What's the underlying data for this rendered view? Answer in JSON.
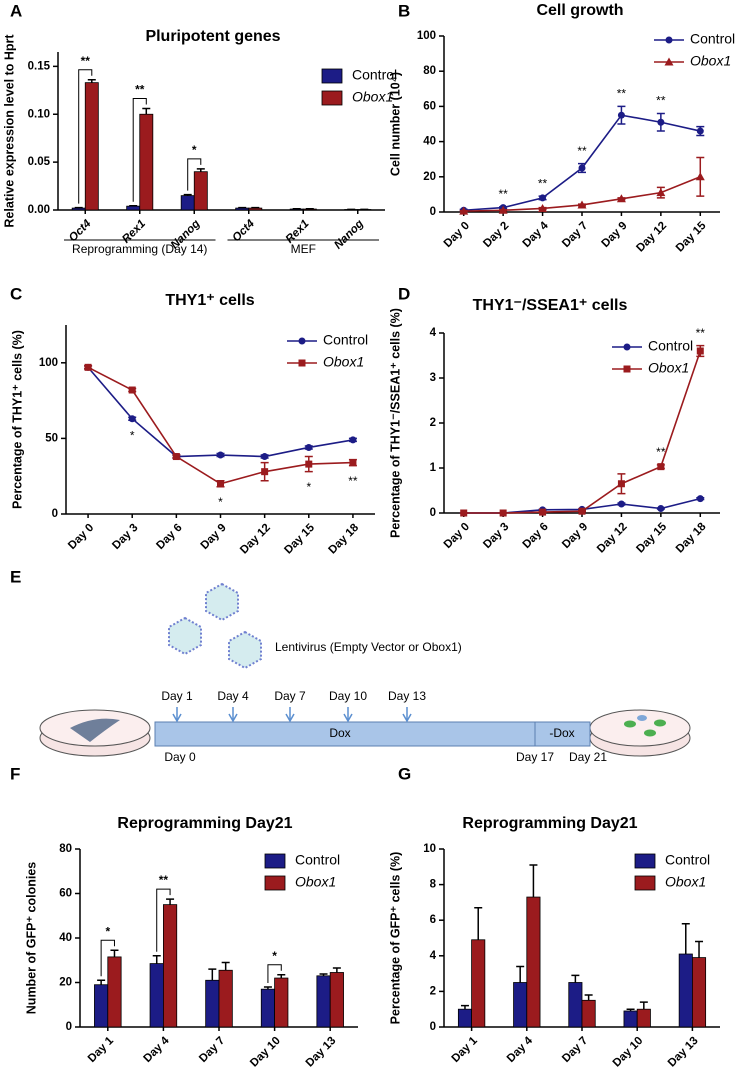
{
  "panel_labels": [
    "A",
    "B",
    "C",
    "D",
    "E",
    "F",
    "G"
  ],
  "chart_data": [
    {
      "type": "bar",
      "title": "Pluripotent genes",
      "y_label": "Relative expression level to Hprt",
      "categories": [
        "Oct4",
        "Rex1",
        "Nanog",
        "Oct4",
        "Rex1",
        "Nanog"
      ],
      "italic_categories": true,
      "group_labels": [
        "Reprogramming (Day 14)",
        "MEF"
      ],
      "series": [
        {
          "name": "Control",
          "color": "#1c1c86",
          "values": [
            0.002,
            0.004,
            0.015,
            0.002,
            0.001,
            0.0005
          ],
          "errors": [
            0.0005,
            0.0005,
            0.001,
            0.0005,
            0.0003,
            0.0002
          ]
        },
        {
          "name": "Obox1",
          "color": "#9b1b1e",
          "italic": true,
          "values": [
            0.133,
            0.1,
            0.04,
            0.002,
            0.001,
            0.0005
          ],
          "errors": [
            0.003,
            0.006,
            0.003,
            0.0005,
            0.0003,
            0.0002
          ]
        }
      ],
      "significance": [
        "**",
        "**",
        "*",
        null,
        null,
        null
      ],
      "significance_style": "bracket",
      "ylim": [
        0,
        0.165
      ],
      "yticks": [
        {
          "value": 0,
          "label": "0.00"
        },
        {
          "value": 0.05,
          "label": "0.05"
        },
        {
          "value": 0.1,
          "label": "0.10"
        },
        {
          "value": 0.15,
          "label": "0.15"
        }
      ]
    },
    {
      "type": "line",
      "title": "Cell growth",
      "y_label": "Cell number (10⁴)",
      "categories": [
        "Day 0",
        "Day 2",
        "Day 4",
        "Day 7",
        "Day 9",
        "Day 12",
        "Day 15"
      ],
      "series": [
        {
          "name": "Control",
          "color": "#1c1c86",
          "marker": "circle",
          "values": [
            1,
            2.5,
            8,
            25,
            55,
            51,
            46
          ],
          "errors": [
            0.5,
            0.5,
            1,
            2.5,
            5,
            5,
            2.5
          ]
        },
        {
          "name": "Obox1",
          "color": "#9b1b1e",
          "marker": "triangle",
          "italic": true,
          "values": [
            0.5,
            1,
            2,
            4,
            7.5,
            11,
            20
          ],
          "errors": [
            0.3,
            0.3,
            0.5,
            0.5,
            0.5,
            3,
            11
          ]
        }
      ],
      "significance": [
        null,
        "**",
        "**",
        "**",
        "**",
        "**",
        null
      ],
      "significance_style": "above",
      "ylim": [
        0,
        100
      ],
      "yticks": [
        0,
        20,
        40,
        60,
        80,
        100
      ]
    },
    {
      "type": "line",
      "title": "THY1⁺ cells",
      "y_label": "Percentage of THY1⁺ cells (%)",
      "categories": [
        "Day 0",
        "Day 3",
        "Day 6",
        "Day 9",
        "Day 12",
        "Day 15",
        "Day 18"
      ],
      "series": [
        {
          "name": "Control",
          "color": "#1c1c86",
          "marker": "circle",
          "values": [
            97,
            63,
            38,
            39,
            38,
            44,
            49
          ],
          "errors": [
            1,
            1,
            1,
            1,
            1,
            1,
            1
          ]
        },
        {
          "name": "Obox1",
          "color": "#9b1b1e",
          "marker": "square",
          "italic": true,
          "values": [
            97,
            82,
            38,
            20,
            28,
            33,
            34
          ],
          "errors": [
            1,
            1,
            1,
            2,
            6,
            5,
            2
          ]
        }
      ],
      "significance": [
        null,
        "*",
        null,
        "*",
        null,
        "*",
        "**"
      ],
      "significance_style": "below",
      "ylim": [
        0,
        125
      ],
      "yticks": [
        0,
        50,
        100
      ]
    },
    {
      "type": "line",
      "title": "THY1⁻/SSEA1⁺ cells",
      "y_label": "Percentage of THY1⁻/SSEA1⁺ cells (%)",
      "categories": [
        "Day 0",
        "Day 3",
        "Day 6",
        "Day 9",
        "Day 12",
        "Day 15",
        "Day 18"
      ],
      "series": [
        {
          "name": "Control",
          "color": "#1c1c86",
          "marker": "circle",
          "values": [
            0,
            0,
            0.07,
            0.08,
            0.2,
            0.1,
            0.32
          ],
          "errors": [
            0,
            0,
            0.01,
            0.01,
            0.02,
            0.01,
            0.02
          ]
        },
        {
          "name": "Obox1",
          "color": "#9b1b1e",
          "marker": "square",
          "italic": true,
          "values": [
            0,
            0,
            0.02,
            0.04,
            0.65,
            1.03,
            3.6
          ],
          "errors": [
            0,
            0,
            0.01,
            0.01,
            0.22,
            0.04,
            0.12
          ]
        }
      ],
      "significance": [
        null,
        null,
        null,
        null,
        null,
        "**",
        "**"
      ],
      "significance_style": "above",
      "ylim": [
        0,
        4
      ],
      "yticks": [
        0,
        1,
        2,
        3,
        4
      ]
    },
    {
      "type": "bar",
      "title": "Reprogramming Day21",
      "y_label": "Number of GFP⁺ colonies",
      "categories": [
        "Day 1",
        "Day 4",
        "Day 7",
        "Day 10",
        "Day 13"
      ],
      "series": [
        {
          "name": "Control",
          "color": "#1c1c86",
          "values": [
            19,
            28.5,
            21,
            17,
            23
          ],
          "errors": [
            2,
            3.5,
            5,
            1,
            0.8
          ]
        },
        {
          "name": "Obox1",
          "color": "#9b1b1e",
          "italic": true,
          "values": [
            31.5,
            55,
            25.5,
            22,
            24.5
          ],
          "errors": [
            3,
            2.5,
            3.5,
            1.5,
            2
          ]
        }
      ],
      "significance": [
        "*",
        "**",
        null,
        "*",
        null
      ],
      "significance_style": "bracket",
      "ylim": [
        0,
        80
      ],
      "yticks": [
        0,
        20,
        40,
        60,
        80
      ]
    },
    {
      "type": "bar",
      "title": "Reprogramming Day21",
      "y_label": "Percentage of GFP⁺ cells (%)",
      "categories": [
        "Day 1",
        "Day 4",
        "Day 7",
        "Day 10",
        "Day 13"
      ],
      "series": [
        {
          "name": "Control",
          "color": "#1c1c86",
          "values": [
            1,
            2.5,
            2.5,
            0.9,
            4.1
          ],
          "errors": [
            0.2,
            0.9,
            0.4,
            0.1,
            1.7
          ]
        },
        {
          "name": "Obox1",
          "color": "#9b1b1e",
          "italic": true,
          "values": [
            4.9,
            7.3,
            1.5,
            1.0,
            3.9
          ],
          "errors": [
            1.8,
            1.8,
            0.3,
            0.4,
            0.9
          ]
        }
      ],
      "significance": [
        null,
        null,
        null,
        null,
        null
      ],
      "significance_style": "bracket",
      "ylim": [
        0,
        10
      ],
      "yticks": [
        0,
        2,
        4,
        6,
        8,
        10
      ]
    }
  ],
  "diagram": {
    "vector_label": "Lentivirus (Empty Vector or Obox1)",
    "infection_days": [
      "Day 1",
      "Day 4",
      "Day 7",
      "Day 10",
      "Day 13"
    ],
    "dox": "Dox",
    "no_dox": "-Dox",
    "start_day": "Day 0",
    "dox_end_day": "Day 17",
    "end_day": "Day 21"
  }
}
